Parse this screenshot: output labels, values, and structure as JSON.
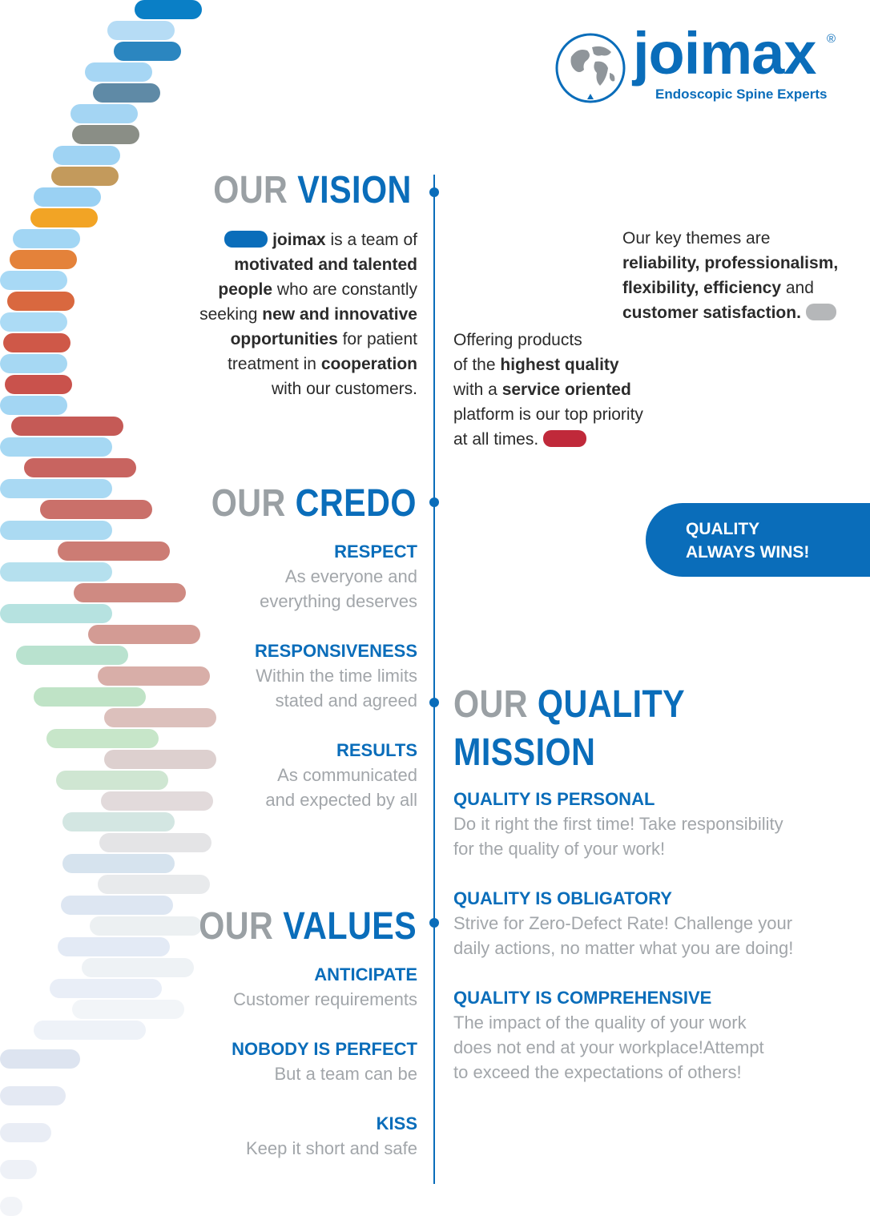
{
  "brand": {
    "name": "joimax",
    "registered": "®",
    "tagline": "Endoscopic Spine Experts",
    "color": "#0a6dba"
  },
  "vision": {
    "heading_a": "OUR",
    "heading_b": "VISION",
    "text_lines": [
      [
        "",
        "joimax",
        " is a team of"
      ],
      [
        "",
        "motivated and talented",
        ""
      ],
      [
        "",
        "people",
        " who are constantly"
      ],
      [
        "seeking ",
        "new and innovative",
        ""
      ],
      [
        "",
        "opportunities",
        " for patient"
      ],
      [
        "treatment in ",
        "cooperation",
        ""
      ],
      [
        "with our customers.",
        "",
        ""
      ]
    ]
  },
  "offering": {
    "lines": [
      [
        "Offering products",
        "",
        ""
      ],
      [
        "of the ",
        "highest quality",
        ""
      ],
      [
        "with a ",
        "service oriented",
        ""
      ],
      [
        "platform is our top priority",
        "",
        ""
      ],
      [
        "at all times.",
        "",
        ""
      ]
    ],
    "accent_color": "#c0293a"
  },
  "themes": {
    "lines": [
      [
        "Our key themes are",
        "",
        ""
      ],
      [
        "",
        "reliability, professionalism,",
        ""
      ],
      [
        "",
        "flexibility, efficiency",
        " and"
      ],
      [
        "",
        "customer satisfaction.",
        ""
      ]
    ],
    "accent_color": "#b5b7b9"
  },
  "credo": {
    "heading_a": "OUR",
    "heading_b": "CREDO",
    "items": [
      {
        "title": "RESPECT",
        "lines": [
          "As everyone and",
          "everything deserves"
        ]
      },
      {
        "title": "RESPONSIVENESS",
        "lines": [
          "Within the time limits",
          "stated and agreed"
        ]
      },
      {
        "title": "RESULTS",
        "lines": [
          "As communicated",
          "and expected by all"
        ]
      }
    ]
  },
  "badge": {
    "line1": "QUALITY",
    "line2": "ALWAYS WINS!"
  },
  "quality_mission": {
    "heading_a": "OUR",
    "heading_b": "QUALITY",
    "heading_c": "MISSION",
    "items": [
      {
        "title": "QUALITY IS PERSONAL",
        "lines": [
          "Do it right the first time! Take responsibility",
          "for the quality of your work!"
        ]
      },
      {
        "title": "QUALITY IS OBLIGATORY",
        "lines": [
          "Strive for Zero-Defect Rate! Challenge your",
          "daily actions, no matter what you are doing!"
        ]
      },
      {
        "title": "QUALITY IS COMPREHENSIVE",
        "lines": [
          "The impact of the quality of your work",
          "does not end at your workplace!Attempt",
          "to exceed the expectations of others!"
        ]
      }
    ]
  },
  "values": {
    "heading_a": "OUR",
    "heading_b": "VALUES",
    "items": [
      {
        "title": "ANTICIPATE",
        "lines": [
          "Customer requirements"
        ]
      },
      {
        "title": "NOBODY IS PERFECT",
        "lines": [
          "But a team can be"
        ]
      },
      {
        "title": "KISS",
        "lines": [
          "Keep it short and safe"
        ]
      }
    ]
  }
}
